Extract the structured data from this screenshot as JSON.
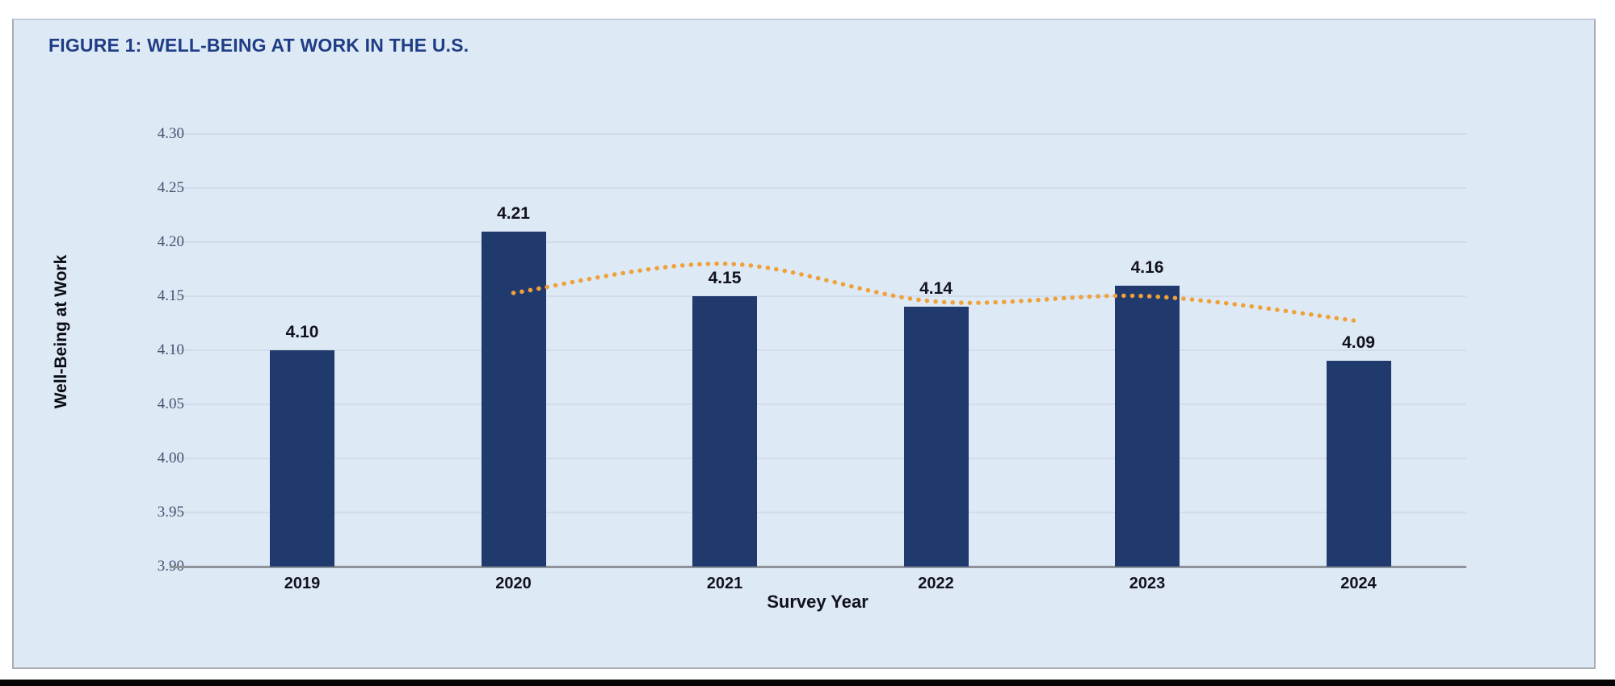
{
  "figure": {
    "title": "FIGURE 1: WELL-BEING AT WORK IN THE U.S."
  },
  "chart_data": {
    "type": "bar",
    "title": "FIGURE 1: WELL-BEING AT WORK IN THE U.S.",
    "categories": [
      "2019",
      "2020",
      "2021",
      "2022",
      "2023",
      "2024"
    ],
    "values": [
      4.1,
      4.21,
      4.15,
      4.14,
      4.16,
      4.09
    ],
    "bar_value_labels": [
      "4.10",
      "4.21",
      "4.15",
      "4.14",
      "4.16",
      "4.09"
    ],
    "xlabel": "Survey Year",
    "ylabel": "Well-Being at Work",
    "ylim": [
      3.9,
      4.3
    ],
    "ytick_labels": [
      "4.30",
      "4.25",
      "4.20",
      "4.15",
      "4.10",
      "4.05",
      "4.00",
      "3.95",
      "3.90"
    ],
    "ytick_values": [
      4.3,
      4.25,
      4.2,
      4.15,
      4.1,
      4.05,
      4.0,
      3.95,
      3.9
    ],
    "grid": true,
    "legend": "none",
    "series": [
      {
        "name": "Well-Being at Work (bars)",
        "type": "bar",
        "categories": [
          "2019",
          "2020",
          "2021",
          "2022",
          "2023",
          "2024"
        ],
        "values": [
          4.1,
          4.21,
          4.15,
          4.14,
          4.16,
          4.09
        ]
      },
      {
        "name": "Dotted trend line",
        "type": "line",
        "style": "dotted",
        "categories": [
          "2020",
          "2021",
          "2022",
          "2023",
          "2024"
        ],
        "values": [
          4.153,
          4.18,
          4.145,
          4.15,
          4.127
        ]
      }
    ]
  },
  "colors": {
    "panel_background": "#dee9f6",
    "panel_border": "#a9adb2",
    "bar_fill": "#213a6e",
    "title_text": "#1e3d85",
    "ytick_text": "#45536f",
    "gridline": "#d3dce9",
    "axis_line": "#8e939b",
    "trend_line": "#efa13a",
    "label_text": "#12121f",
    "bottom_strip": "#050505"
  }
}
